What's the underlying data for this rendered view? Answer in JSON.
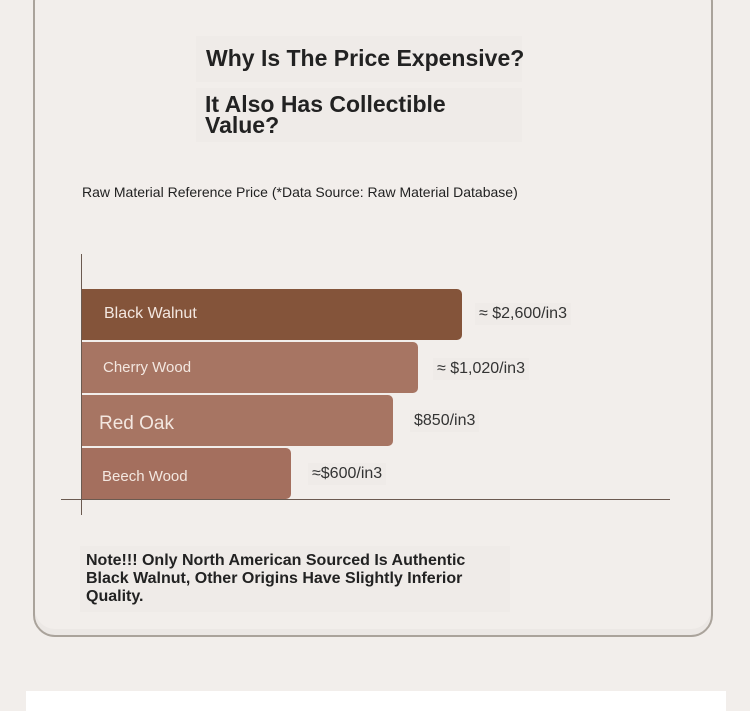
{
  "title_line1": "Why Is The Price Expensive?",
  "title_line2": "It Also Has Collectible Value?",
  "note": "Note!!! Only North American Sourced Is Authentic Black Walnut, Other Origins Have Slightly Inferior Quality.",
  "chart_data": {
    "type": "bar",
    "orientation": "horizontal",
    "title": "Raw Material Reference Price (*Data Source: Raw Material Database)",
    "unit": "$/in3",
    "categories": [
      "Black Walnut",
      "Cherry Wood",
      "Red Oak",
      "Beech Wood"
    ],
    "values": [
      2600,
      1020,
      850,
      600
    ],
    "value_labels": [
      "≈ $2,600/in3",
      "≈ $1,020/in3",
      "$850/in3",
      "≈$600/in3"
    ],
    "colors": [
      "#84543a",
      "#a77563",
      "#a77563",
      "#a46f5e"
    ],
    "grid": false
  }
}
